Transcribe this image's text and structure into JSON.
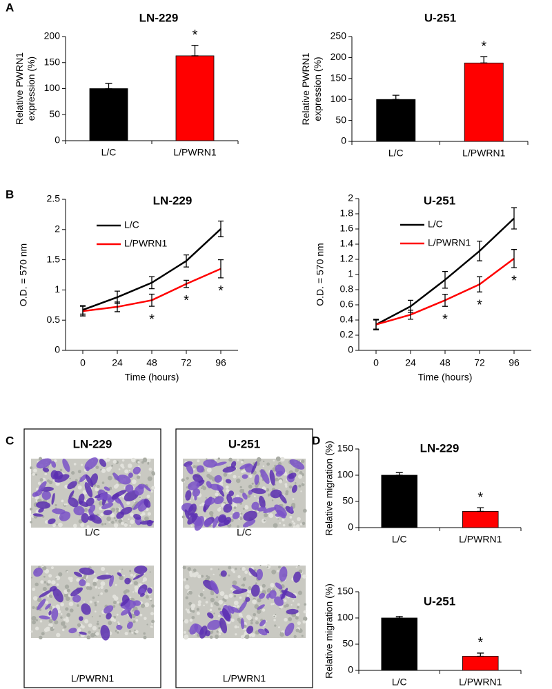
{
  "panel_labels": [
    "A",
    "B",
    "C",
    "D"
  ],
  "panel_c": {
    "columns": [
      {
        "title": "LN-229",
        "images": [
          {
            "label": "L/C"
          },
          {
            "label": "L/PWRN1"
          }
        ]
      },
      {
        "title": "U-251",
        "images": [
          {
            "label": "L/C"
          },
          {
            "label": "L/PWRN1"
          }
        ]
      }
    ]
  },
  "chart_data": [
    {
      "type": "bar",
      "title": "LN-229",
      "ylabel": [
        "Relative PWRN1",
        "expression (%)"
      ],
      "categories": [
        "L/C",
        "L/PWRN1"
      ],
      "values": [
        100,
        163
      ],
      "errors": [
        10,
        20
      ],
      "colors": [
        "#000000",
        "#ff0000"
      ],
      "ylim": [
        0,
        200
      ],
      "yticks": [
        0,
        50,
        100,
        150,
        200
      ],
      "grid": false,
      "annotations": [
        {
          "text": "*",
          "category": 1
        }
      ]
    },
    {
      "type": "bar",
      "title": "U-251",
      "ylabel": [
        "Relative PWRN1",
        "expression (%)"
      ],
      "categories": [
        "L/C",
        "L/PWRN1"
      ],
      "values": [
        100,
        187
      ],
      "errors": [
        10,
        15
      ],
      "colors": [
        "#000000",
        "#ff0000"
      ],
      "ylim": [
        0,
        250
      ],
      "yticks": [
        0,
        50,
        100,
        150,
        200,
        250
      ],
      "grid": false,
      "annotations": [
        {
          "text": "*",
          "category": 1
        }
      ]
    },
    {
      "type": "line",
      "title": "LN-229",
      "xlabel": "Time (hours)",
      "ylabel": [
        "O.D. = 570 nm"
      ],
      "x": [
        0,
        24,
        48,
        72,
        96
      ],
      "xlim": [
        -12,
        108
      ],
      "xticks": [
        0,
        24,
        48,
        72,
        96
      ],
      "ylim": [
        0,
        2.5
      ],
      "yticks": [
        0,
        0.5,
        1,
        1.5,
        2,
        2.5
      ],
      "grid": false,
      "legend": "upper left",
      "series": [
        {
          "name": "L/C",
          "color": "#000000",
          "values": [
            0.67,
            0.88,
            1.12,
            1.48,
            2.01
          ],
          "errors": [
            0.07,
            0.1,
            0.1,
            0.1,
            0.13
          ]
        },
        {
          "name": "L/PWRN1",
          "color": "#ff0000",
          "values": [
            0.65,
            0.72,
            0.83,
            1.1,
            1.35
          ],
          "errors": [
            0.08,
            0.08,
            0.1,
            0.06,
            0.15
          ]
        }
      ],
      "annotations": [
        {
          "text": "*",
          "series": 1,
          "point": 2
        },
        {
          "text": "*",
          "series": 1,
          "point": 3
        },
        {
          "text": "*",
          "series": 1,
          "point": 4
        }
      ]
    },
    {
      "type": "line",
      "title": "U-251",
      "xlabel": "Time (hours)",
      "ylabel": [
        "O.D. = 570 nm"
      ],
      "x": [
        0,
        24,
        48,
        72,
        96
      ],
      "xlim": [
        -12,
        108
      ],
      "xticks": [
        0,
        24,
        48,
        72,
        96
      ],
      "ylim": [
        0,
        2
      ],
      "yticks": [
        0,
        0.2,
        0.4,
        0.6,
        0.8,
        1,
        1.2,
        1.4,
        1.6,
        1.8,
        2
      ],
      "grid": false,
      "legend": "upper left",
      "series": [
        {
          "name": "L/C",
          "color": "#000000",
          "values": [
            0.34,
            0.58,
            0.93,
            1.31,
            1.74
          ],
          "errors": [
            0.07,
            0.08,
            0.11,
            0.13,
            0.14
          ]
        },
        {
          "name": "L/PWRN1",
          "color": "#ff0000",
          "values": [
            0.34,
            0.47,
            0.66,
            0.87,
            1.21
          ],
          "errors": [
            0.06,
            0.06,
            0.08,
            0.1,
            0.12
          ]
        }
      ],
      "annotations": [
        {
          "text": "*",
          "series": 1,
          "point": 2
        },
        {
          "text": "*",
          "series": 1,
          "point": 3
        },
        {
          "text": "*",
          "series": 1,
          "point": 4
        }
      ]
    },
    {
      "type": "bar",
      "title": "LN-229",
      "ylabel": [
        "Relative migration (%)"
      ],
      "categories": [
        "L/C",
        "L/PWRN1"
      ],
      "values": [
        100,
        31
      ],
      "errors": [
        5,
        7
      ],
      "colors": [
        "#000000",
        "#ff0000"
      ],
      "ylim": [
        0,
        150
      ],
      "yticks": [
        0,
        50,
        100,
        150
      ],
      "grid": false,
      "annotations": [
        {
          "text": "*",
          "category": 1
        }
      ]
    },
    {
      "type": "bar",
      "title": "U-251",
      "ylabel": [
        "Relative migration (%)"
      ],
      "categories": [
        "L/C",
        "L/PWRN1"
      ],
      "values": [
        100,
        27
      ],
      "errors": [
        3,
        6
      ],
      "colors": [
        "#000000",
        "#ff0000"
      ],
      "ylim": [
        0,
        150
      ],
      "yticks": [
        0,
        50,
        100,
        150
      ],
      "grid": false,
      "annotations": [
        {
          "text": "*",
          "category": 1
        }
      ]
    }
  ]
}
